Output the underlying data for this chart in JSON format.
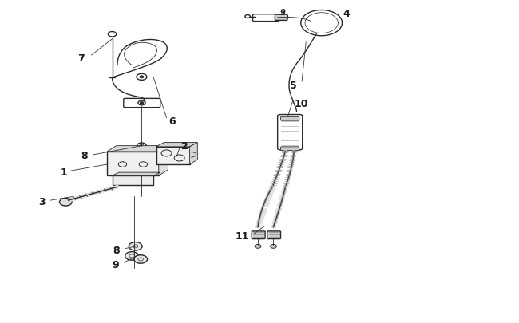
{
  "bg_color": "#ffffff",
  "line_color": "#2a2a2a",
  "label_color": "#1a1a1a",
  "fig_width": 6.5,
  "fig_height": 4.06,
  "dpi": 100
}
